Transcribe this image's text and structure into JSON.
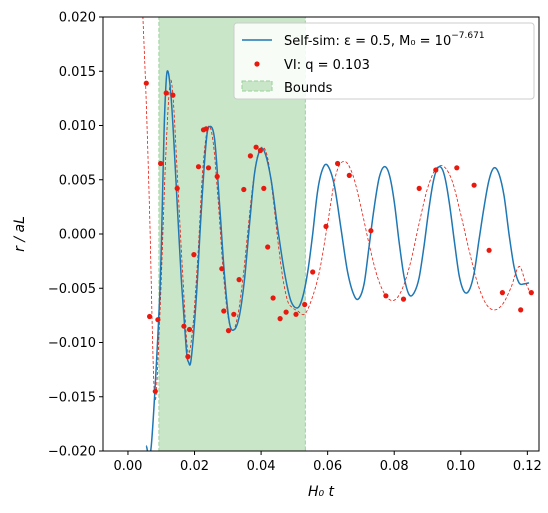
{
  "chart_data": {
    "type": "line",
    "xlabel": "H₀ t",
    "ylabel": "r / aL",
    "xlim": [
      -0.0075,
      0.1235
    ],
    "ylim": [
      -0.02,
      0.02
    ],
    "x_ticks": [
      "0.00",
      "0.02",
      "0.04",
      "0.06",
      "0.08",
      "0.10",
      "0.12"
    ],
    "x_tick_values": [
      0.0,
      0.02,
      0.04,
      0.06,
      0.08,
      0.1,
      0.12
    ],
    "y_ticks": [
      "−0.020",
      "−0.015",
      "−0.010",
      "−0.005",
      "0.000",
      "0.005",
      "0.010",
      "0.015",
      "0.020"
    ],
    "y_tick_values": [
      -0.02,
      -0.015,
      -0.01,
      -0.005,
      0.0,
      0.005,
      0.01,
      0.015,
      0.02
    ],
    "legend": {
      "placement": "top-right",
      "entries": [
        {
          "label": "Self-sim: ε = 0.5, M₀ = 10",
          "superscript": "−7.671",
          "style": "line",
          "color": "#1f77b4"
        },
        {
          "label": "VI: q = 0.103",
          "style": "marker",
          "color": "#e8190e"
        },
        {
          "label": "Bounds",
          "style": "patch",
          "color": "#c9e6c9"
        }
      ]
    },
    "bounds": {
      "x_start": 0.0093,
      "x_end": 0.0533,
      "color": "#c9e6c9",
      "edge_color": "#97d197"
    },
    "series": [
      {
        "name": "Self-sim: ε = 0.5, M₀ = 10⁻⁷·⁶⁷¹",
        "color": "#1f77b4",
        "style": "solid",
        "x": [
          0.0055,
          0.007,
          0.0095,
          0.0105,
          0.011,
          0.0118,
          0.013,
          0.0145,
          0.016,
          0.0175,
          0.0182,
          0.019,
          0.0205,
          0.022,
          0.0235,
          0.0245,
          0.026,
          0.0275,
          0.029,
          0.0305,
          0.032,
          0.0335,
          0.035,
          0.0365,
          0.038,
          0.0395,
          0.041,
          0.043,
          0.045,
          0.047,
          0.049,
          0.051,
          0.0525,
          0.054,
          0.0555,
          0.057,
          0.0585,
          0.06,
          0.062,
          0.064,
          0.066,
          0.068,
          0.0695,
          0.071,
          0.0725,
          0.074,
          0.0755,
          0.077,
          0.0785,
          0.08,
          0.0815,
          0.083,
          0.0845,
          0.086,
          0.0875,
          0.089,
          0.0905,
          0.092,
          0.0935,
          0.095,
          0.0965,
          0.098,
          0.0995,
          0.101,
          0.1025,
          0.104,
          0.1055,
          0.107,
          0.1085,
          0.11,
          0.1115,
          0.113,
          0.1145,
          0.116,
          0.1175,
          0.119,
          0.1205
        ],
        "y": [
          -0.0195,
          -0.0195,
          -0.006,
          0.005,
          0.011,
          0.015,
          0.0125,
          0.0045,
          -0.004,
          -0.0105,
          -0.0118,
          -0.0115,
          -0.006,
          0.002,
          0.0085,
          0.0099,
          0.0088,
          0.0028,
          -0.0038,
          -0.0082,
          -0.0088,
          -0.0075,
          -0.0042,
          0.0008,
          0.0055,
          0.0076,
          0.0076,
          0.005,
          0.0005,
          -0.0035,
          -0.0062,
          -0.0068,
          -0.0058,
          -0.0035,
          0.0,
          0.004,
          0.006,
          0.0063,
          0.0045,
          0.0005,
          -0.0035,
          -0.0057,
          -0.0059,
          -0.0045,
          -0.001,
          0.0025,
          0.0052,
          0.0062,
          0.0055,
          0.003,
          -0.0008,
          -0.004,
          -0.0056,
          -0.0054,
          -0.004,
          -0.001,
          0.0025,
          0.0052,
          0.0062,
          0.0055,
          0.003,
          -0.0005,
          -0.0038,
          -0.0053,
          -0.0052,
          -0.0036,
          -0.0005,
          0.0025,
          0.005,
          0.0061,
          0.0055,
          0.0035,
          0.0,
          -0.003,
          -0.0045,
          -0.0046,
          -0.0045
        ]
      },
      {
        "name": "VI: q = 0.103",
        "color": "#e8190e",
        "style": "dashed",
        "marker": "dot",
        "x": [
          0.0035,
          0.0045,
          0.0055,
          0.0065,
          0.008,
          0.0095,
          0.0112,
          0.0125,
          0.0135,
          0.015,
          0.0165,
          0.018,
          0.0195,
          0.021,
          0.0225,
          0.024,
          0.0255,
          0.027,
          0.0285,
          0.03,
          0.0315,
          0.033,
          0.0345,
          0.036,
          0.0375,
          0.039,
          0.0405,
          0.042,
          0.0435,
          0.045,
          0.0465,
          0.048,
          0.0495,
          0.051,
          0.053,
          0.055,
          0.0575,
          0.06,
          0.0625,
          0.065,
          0.0675,
          0.07,
          0.0725,
          0.075,
          0.0775,
          0.08,
          0.0825,
          0.085,
          0.0875,
          0.09,
          0.0925,
          0.095,
          0.0975,
          0.1,
          0.1025,
          0.105,
          0.1075,
          0.11,
          0.1125,
          0.115,
          0.1175,
          0.1195,
          0.121
        ],
        "y": [
          0.027,
          0.02,
          0.012,
          0.002,
          -0.015,
          -0.008,
          0.006,
          0.0135,
          0.0128,
          0.0045,
          -0.004,
          -0.0108,
          -0.0085,
          -0.002,
          0.006,
          0.0098,
          0.0087,
          0.0035,
          -0.003,
          -0.0075,
          -0.0089,
          -0.0075,
          -0.0042,
          0.0002,
          0.0045,
          0.0073,
          0.008,
          0.007,
          0.0036,
          -0.0005,
          -0.004,
          -0.0062,
          -0.0068,
          -0.0071,
          -0.0074,
          -0.0062,
          -0.0035,
          0.001,
          0.0055,
          0.0067,
          0.0055,
          0.0025,
          -0.001,
          -0.004,
          -0.0057,
          -0.0061,
          -0.005,
          -0.0025,
          0.001,
          0.0042,
          0.006,
          0.0062,
          0.0048,
          0.0018,
          -0.0015,
          -0.0045,
          -0.0064,
          -0.007,
          -0.0065,
          -0.005,
          -0.003,
          -0.0045,
          -0.0055
        ]
      },
      {
        "name": "VI: q = 0.103 (markers)",
        "color": "#e8190e",
        "style": "markers",
        "x": [
          0.0055,
          0.0065,
          0.0082,
          0.009,
          0.0098,
          0.0115,
          0.0135,
          0.0148,
          0.0168,
          0.018,
          0.0185,
          0.0198,
          0.0212,
          0.0227,
          0.0235,
          0.0242,
          0.0268,
          0.0282,
          0.0288,
          0.0302,
          0.0318,
          0.0334,
          0.0348,
          0.0368,
          0.0385,
          0.0398,
          0.0408,
          0.042,
          0.0436,
          0.0457,
          0.0475,
          0.0505,
          0.0531,
          0.0555,
          0.0595,
          0.063,
          0.0665,
          0.073,
          0.0775,
          0.0828,
          0.0875,
          0.0925,
          0.0988,
          0.104,
          0.1085,
          0.1125,
          0.118,
          0.1212
        ],
        "y": [
          0.0139,
          -0.0076,
          -0.0145,
          -0.0079,
          0.0065,
          0.013,
          0.0128,
          0.0042,
          -0.0085,
          -0.0113,
          -0.0088,
          -0.0019,
          0.0062,
          0.0096,
          0.0097,
          0.0061,
          0.0053,
          -0.0032,
          -0.0071,
          -0.0089,
          -0.0074,
          -0.0042,
          0.0041,
          0.0072,
          0.008,
          0.0077,
          0.0042,
          -0.0012,
          -0.0059,
          -0.0078,
          -0.0072,
          -0.0074,
          -0.0065,
          -0.0035,
          0.0007,
          0.0065,
          0.0054,
          0.0003,
          -0.0057,
          -0.006,
          0.0042,
          0.0059,
          0.0061,
          0.0045,
          -0.0015,
          -0.0054,
          -0.007,
          -0.0054
        ]
      }
    ]
  }
}
